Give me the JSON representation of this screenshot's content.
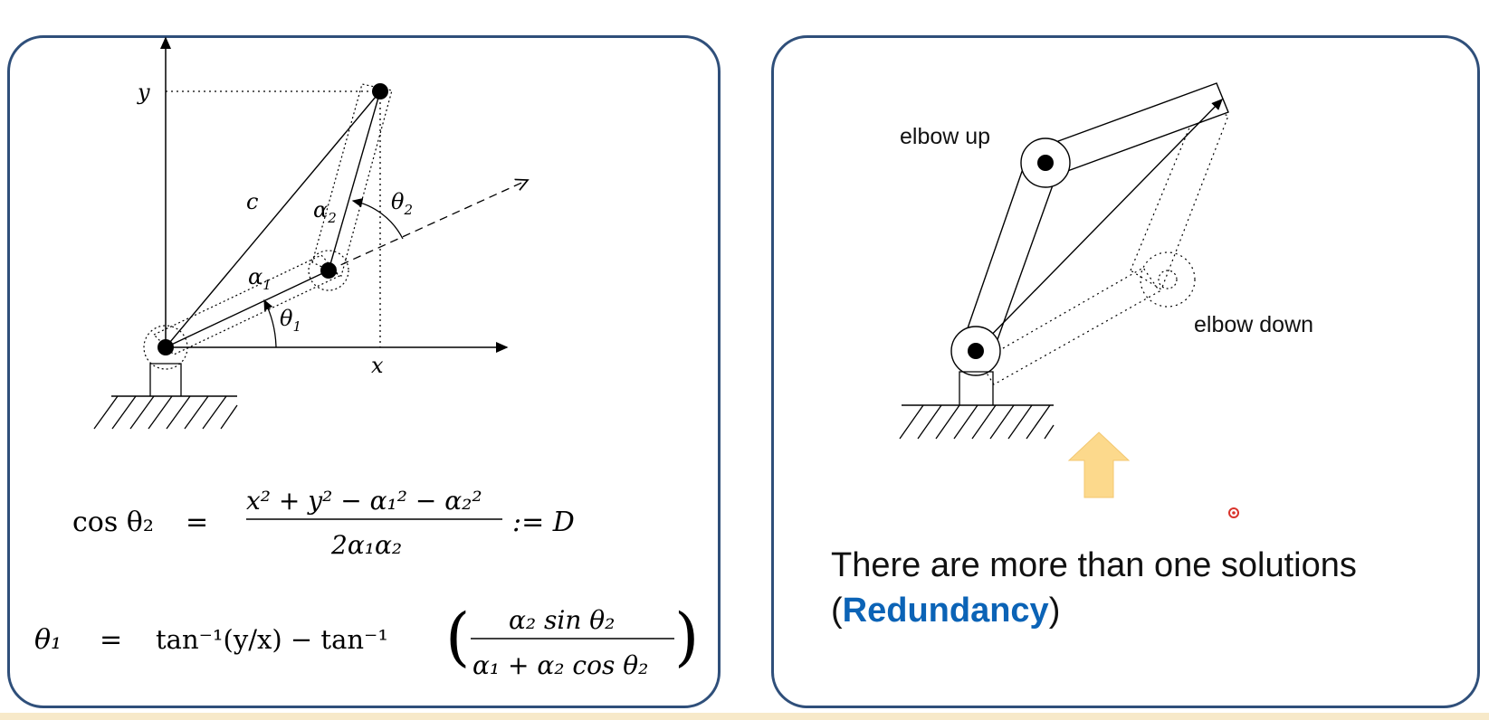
{
  "colors": {
    "panel_border": "#2f4f7a",
    "accent": "#0b63b6",
    "arrow_fill": "#fcd98c",
    "pointer_dot": "#d9332b",
    "bottom_strip": "#f7e9c9"
  },
  "left_diagram": {
    "label_y": "y",
    "label_x": "x",
    "label_c": "c",
    "label_alpha1": "α",
    "label_alpha1_sub": "1",
    "label_alpha2": "α",
    "label_alpha2_sub": "2",
    "label_theta1": "θ",
    "label_theta1_sub": "1",
    "label_theta2": "θ",
    "label_theta2_sub": "2"
  },
  "equations": {
    "eq1_lhs": "cos θ₂",
    "eq1_eq": "=",
    "eq1_numerator": "x² + y² − α₁² − α₂²",
    "eq1_denominator": "2α₁α₂",
    "eq1_suffix": ":= D",
    "eq2_lhs": "θ₁",
    "eq2_eq": "=",
    "eq2_term1": "tan⁻¹(y/x) − tan⁻¹",
    "eq2_numerator": "α₂ sin θ₂",
    "eq2_denominator": "α₁ + α₂ cos θ₂",
    "eq2_lparen": "(",
    "eq2_rparen": ")"
  },
  "right_diagram": {
    "elbow_up_label": "elbow up",
    "elbow_down_label": "elbow down",
    "arrow_icon": "up-arrow-icon"
  },
  "solution": {
    "text_before": "There are more than one solutions",
    "paren_open": "(",
    "highlight": "Redundancy",
    "paren_close": ")"
  }
}
